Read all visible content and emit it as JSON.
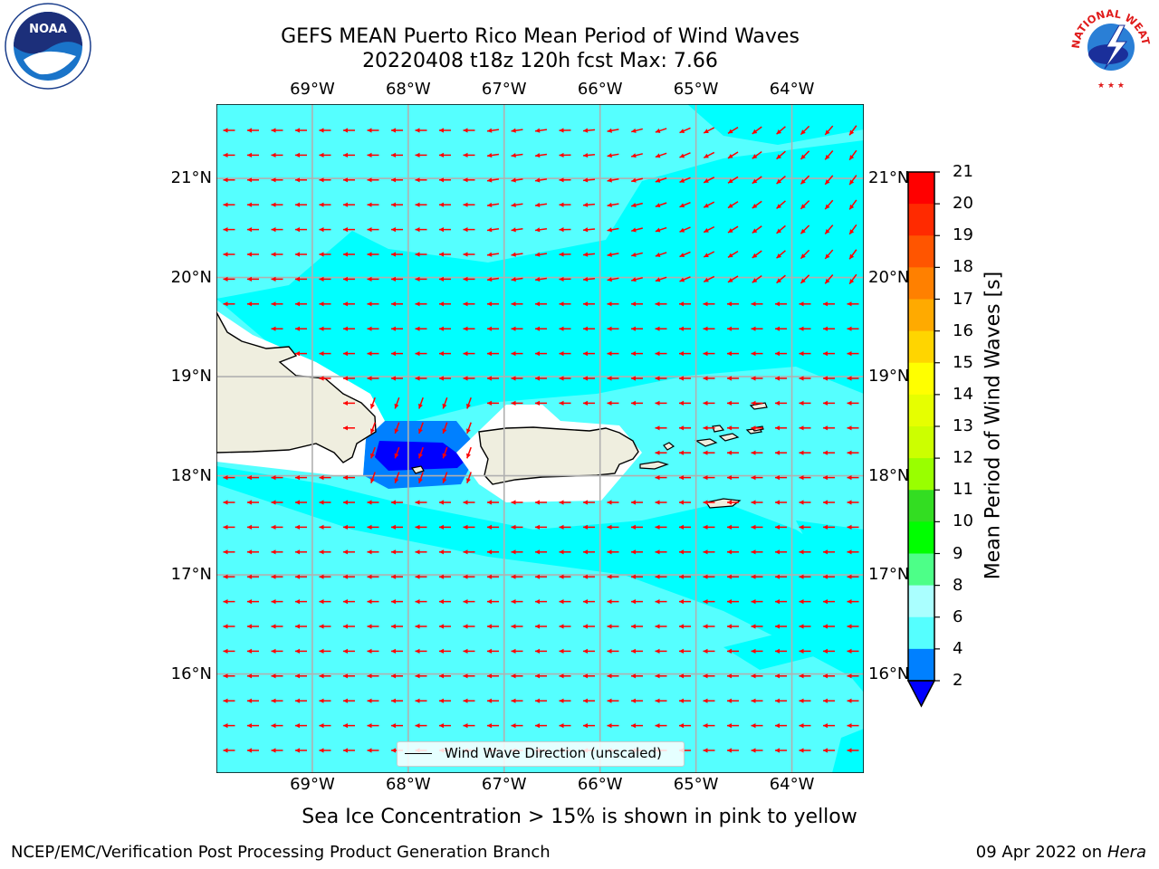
{
  "header": {
    "title_line1": "GEFS MEAN Puerto Rico Mean Period of Wind Waves",
    "title_line2": "20220408 t18z 120h fcst   Max: 7.66"
  },
  "map": {
    "lon_ticks": [
      "69°W",
      "68°W",
      "67°W",
      "66°W",
      "65°W",
      "64°W"
    ],
    "lat_ticks": [
      "21°N",
      "20°N",
      "19°N",
      "18°N",
      "17°N",
      "16°N"
    ],
    "lon_range": [
      -70.0,
      -63.25
    ],
    "lat_range": [
      15.0,
      21.75
    ],
    "grid": true,
    "ocean_color": "#00ffff",
    "land_color": "#efeedf",
    "arrow_color": "#ff0000",
    "legend_label": "Wind Wave Direction (unscaled)"
  },
  "colorbar": {
    "title": "Mean Period of Wind Waves [s]",
    "labels": [
      "21",
      "20",
      "19",
      "18",
      "17",
      "16",
      "15",
      "14",
      "13",
      "12",
      "11",
      "10",
      "9",
      "8",
      "6",
      "4",
      "2"
    ],
    "colors": [
      "#ff0000",
      "#ff2a00",
      "#ff5500",
      "#ff8000",
      "#ffaa00",
      "#ffd500",
      "#ffff00",
      "#e6ff00",
      "#ccff00",
      "#99ff00",
      "#33dd22",
      "#00ff00",
      "#4dff88",
      "#aaffff",
      "#55ffff",
      "#00ffff",
      "#0080ff"
    ],
    "under_color": "#0000ff"
  },
  "footer": {
    "note": "Sea Ice Concentration > 15% is shown in pink to yellow",
    "credit_left": "NCEP/EMC/Verification Post Processing Product Generation Branch",
    "date": "09 Apr 2022 on",
    "machine": "Hera"
  },
  "logos": {
    "noaa_text": "NOAA",
    "nws_text": "NATIONAL WEATHER SERVICE"
  }
}
